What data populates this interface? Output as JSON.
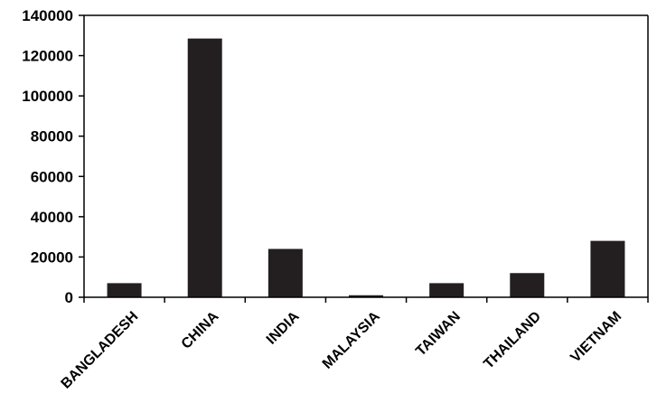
{
  "chart_data": {
    "type": "bar",
    "title": "",
    "xlabel": "",
    "ylabel": "",
    "categories": [
      "BANGLADESH",
      "CHINA",
      "INDIA",
      "MALAYSIA",
      "TAIWAN",
      "THAILAND",
      "VIETNAM"
    ],
    "values": [
      7000,
      128500,
      24000,
      1000,
      7000,
      12000,
      28000
    ],
    "ylim": [
      0,
      140000
    ],
    "yticks": [
      0,
      20000,
      40000,
      60000,
      80000,
      100000,
      120000,
      140000
    ],
    "ytick_labels": [
      "0",
      "20000",
      "40000",
      "60000",
      "80000",
      "100000",
      "120000",
      "140000"
    ],
    "grid": false,
    "legend": "none",
    "bar_color": "#231f20"
  }
}
